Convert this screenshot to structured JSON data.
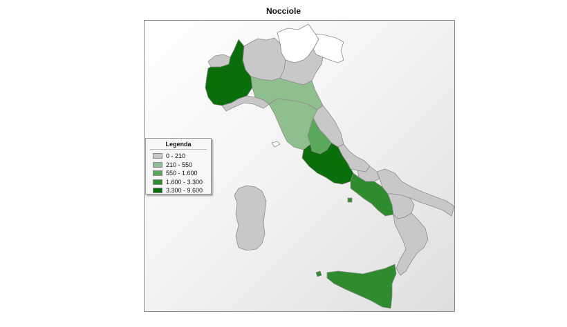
{
  "title": "Nocciole",
  "legend": {
    "title": "Legenda",
    "items": [
      {
        "label": "0 - 210",
        "color": "#c8c8c8"
      },
      {
        "label": "210 - 550",
        "color": "#8fbf8f"
      },
      {
        "label": "550 - 1.600",
        "color": "#5aa85a"
      },
      {
        "label": "1.600 - 3.300",
        "color": "#2e8b2e"
      },
      {
        "label": "3.300 - 9.600",
        "color": "#0a6e0a"
      }
    ]
  },
  "no_data_color": "#ffffff",
  "regions": [
    {
      "name": "Valle d'Aosta",
      "class": "0 - 210"
    },
    {
      "name": "Piemonte",
      "class": "3.300 - 9.600"
    },
    {
      "name": "Lombardia",
      "class": "0 - 210"
    },
    {
      "name": "Trentino-Alto Adige",
      "class": "none"
    },
    {
      "name": "Veneto",
      "class": "0 - 210"
    },
    {
      "name": "Friuli-Venezia Giulia",
      "class": "none"
    },
    {
      "name": "Liguria",
      "class": "0 - 210"
    },
    {
      "name": "Emilia-Romagna",
      "class": "210 - 550"
    },
    {
      "name": "Toscana",
      "class": "210 - 550"
    },
    {
      "name": "Umbria",
      "class": "550 - 1.600"
    },
    {
      "name": "Marche",
      "class": "0 - 210"
    },
    {
      "name": "Lazio",
      "class": "3.300 - 9.600"
    },
    {
      "name": "Abruzzo",
      "class": "0 - 210"
    },
    {
      "name": "Molise",
      "class": "0 - 210"
    },
    {
      "name": "Campania",
      "class": "1.600 - 3.300"
    },
    {
      "name": "Puglia",
      "class": "0 - 210"
    },
    {
      "name": "Basilicata",
      "class": "0 - 210"
    },
    {
      "name": "Calabria",
      "class": "0 - 210"
    },
    {
      "name": "Sicilia",
      "class": "1.600 - 3.300"
    },
    {
      "name": "Sardegna",
      "class": "0 - 210"
    }
  ]
}
